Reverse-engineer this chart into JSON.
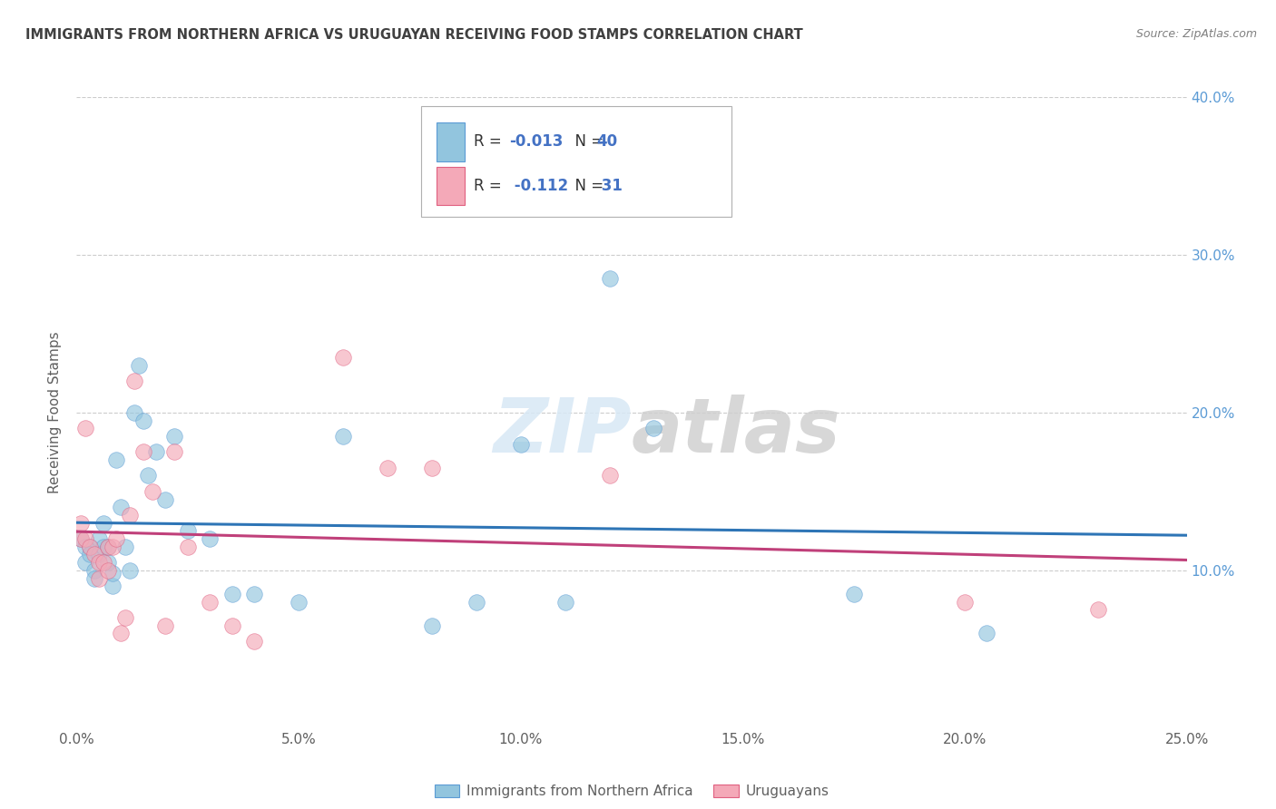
{
  "title": "IMMIGRANTS FROM NORTHERN AFRICA VS URUGUAYAN RECEIVING FOOD STAMPS CORRELATION CHART",
  "source": "Source: ZipAtlas.com",
  "ylabel": "Receiving Food Stamps",
  "x_min": 0.0,
  "x_max": 0.25,
  "y_min": 0.0,
  "y_max": 0.4,
  "x_tick_labels": [
    "0.0%",
    "5.0%",
    "10.0%",
    "15.0%",
    "20.0%",
    "25.0%"
  ],
  "x_tick_values": [
    0.0,
    0.05,
    0.1,
    0.15,
    0.2,
    0.25
  ],
  "y_tick_labels": [
    "10.0%",
    "20.0%",
    "30.0%",
    "40.0%"
  ],
  "y_tick_values": [
    0.1,
    0.2,
    0.3,
    0.4
  ],
  "blue_color": "#92C5DE",
  "blue_edge_color": "#5B9BD5",
  "blue_line_color": "#2E75B6",
  "pink_color": "#F4A9B8",
  "pink_edge_color": "#E06080",
  "pink_line_color": "#C0407A",
  "legend_blue_label": "Immigrants from Northern Africa",
  "legend_pink_label": "Uruguayans",
  "r_blue": "-0.013",
  "n_blue": "40",
  "r_pink": "-0.112",
  "n_pink": "31",
  "blue_x": [
    0.001,
    0.002,
    0.002,
    0.003,
    0.003,
    0.004,
    0.004,
    0.005,
    0.005,
    0.006,
    0.006,
    0.007,
    0.007,
    0.008,
    0.008,
    0.009,
    0.01,
    0.011,
    0.012,
    0.013,
    0.014,
    0.015,
    0.016,
    0.018,
    0.02,
    0.022,
    0.025,
    0.03,
    0.035,
    0.04,
    0.05,
    0.06,
    0.08,
    0.09,
    0.1,
    0.11,
    0.12,
    0.13,
    0.175,
    0.205
  ],
  "blue_y": [
    0.12,
    0.115,
    0.105,
    0.115,
    0.11,
    0.1,
    0.095,
    0.12,
    0.11,
    0.13,
    0.115,
    0.115,
    0.105,
    0.09,
    0.098,
    0.17,
    0.14,
    0.115,
    0.1,
    0.2,
    0.23,
    0.195,
    0.16,
    0.175,
    0.145,
    0.185,
    0.125,
    0.12,
    0.085,
    0.085,
    0.08,
    0.185,
    0.065,
    0.08,
    0.18,
    0.08,
    0.285,
    0.19,
    0.085,
    0.06
  ],
  "pink_x": [
    0.001,
    0.001,
    0.002,
    0.002,
    0.003,
    0.004,
    0.005,
    0.005,
    0.006,
    0.007,
    0.007,
    0.008,
    0.009,
    0.01,
    0.011,
    0.012,
    0.013,
    0.015,
    0.017,
    0.02,
    0.022,
    0.025,
    0.03,
    0.035,
    0.04,
    0.06,
    0.07,
    0.08,
    0.12,
    0.2,
    0.23
  ],
  "pink_y": [
    0.13,
    0.12,
    0.19,
    0.12,
    0.115,
    0.11,
    0.105,
    0.095,
    0.105,
    0.1,
    0.115,
    0.115,
    0.12,
    0.06,
    0.07,
    0.135,
    0.22,
    0.175,
    0.15,
    0.065,
    0.175,
    0.115,
    0.08,
    0.065,
    0.055,
    0.235,
    0.165,
    0.165,
    0.16,
    0.08,
    0.075
  ],
  "watermark_zip": "ZIP",
  "watermark_atlas": "atlas",
  "background_color": "#ffffff",
  "grid_color": "#cccccc",
  "title_color": "#404040",
  "source_color": "#808080",
  "axis_label_color": "#606060",
  "tick_color": "#606060",
  "right_tick_color": "#5B9BD5"
}
